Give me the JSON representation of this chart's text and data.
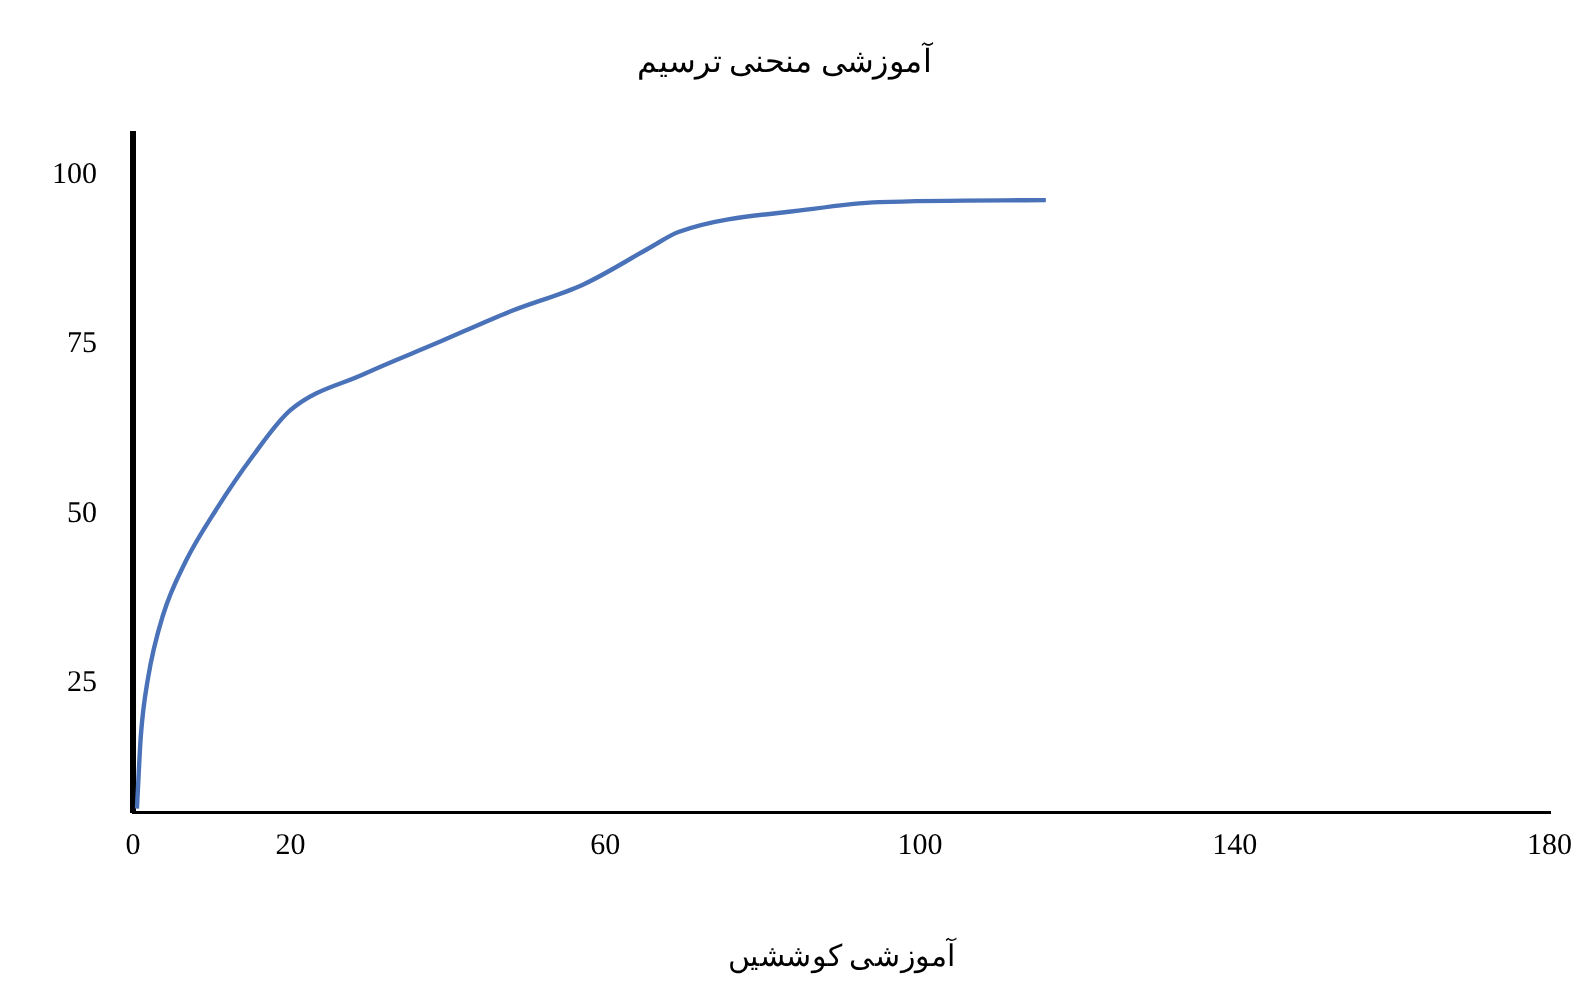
{
  "chart_data": {
    "type": "line",
    "title": "آموزشی منحنی ترسیم",
    "xlabel": "آموزشی کوششیں",
    "x": [
      0.5,
      1.0,
      1.9,
      3.8,
      6.7,
      10.5,
      15.2,
      20,
      29.3,
      38.6,
      48.0,
      57.3,
      66.0,
      69.3,
      86.4,
      94.8,
      116
    ],
    "series": [
      {
        "color": "#4a72b8",
        "values": [
          6.5,
          17.3,
          25.7,
          35.0,
          43.0,
          50.5,
          58.5,
          65.3,
          70.6,
          75.2,
          79.9,
          83.9,
          89.5,
          91.6,
          95.0,
          96.0,
          96.3
        ]
      }
    ],
    "xlim": [
      0,
      180
    ],
    "xticks": [
      0,
      20,
      60,
      100,
      140,
      180
    ],
    "ylim": [
      6,
      106
    ],
    "yticks": [
      25,
      50,
      75,
      100
    ],
    "grid": false,
    "legend": false,
    "marker": "none",
    "line_style": "solid"
  }
}
